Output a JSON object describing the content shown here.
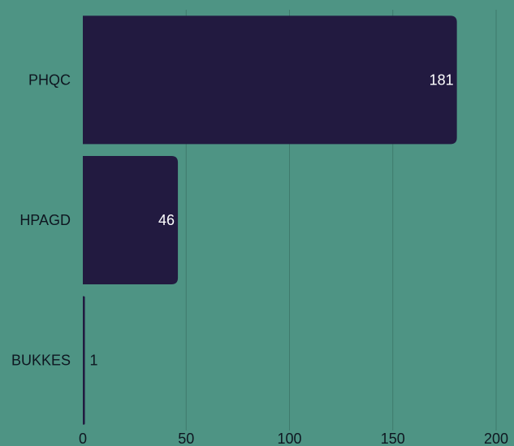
{
  "chart_data": {
    "type": "bar",
    "orientation": "horizontal",
    "categories": [
      "PHQC",
      "HPAGD",
      "BUKKES"
    ],
    "values": [
      181,
      46,
      1
    ],
    "xlim": [
      0,
      200
    ],
    "xticks": [
      0,
      50,
      100,
      150,
      200
    ],
    "grid": "vertical",
    "colors": {
      "background": "#4e9484",
      "bar": "#221a40",
      "grid": "#3f7a6d",
      "label_dark": "#0e1620",
      "label_light": "#ffffff"
    }
  }
}
